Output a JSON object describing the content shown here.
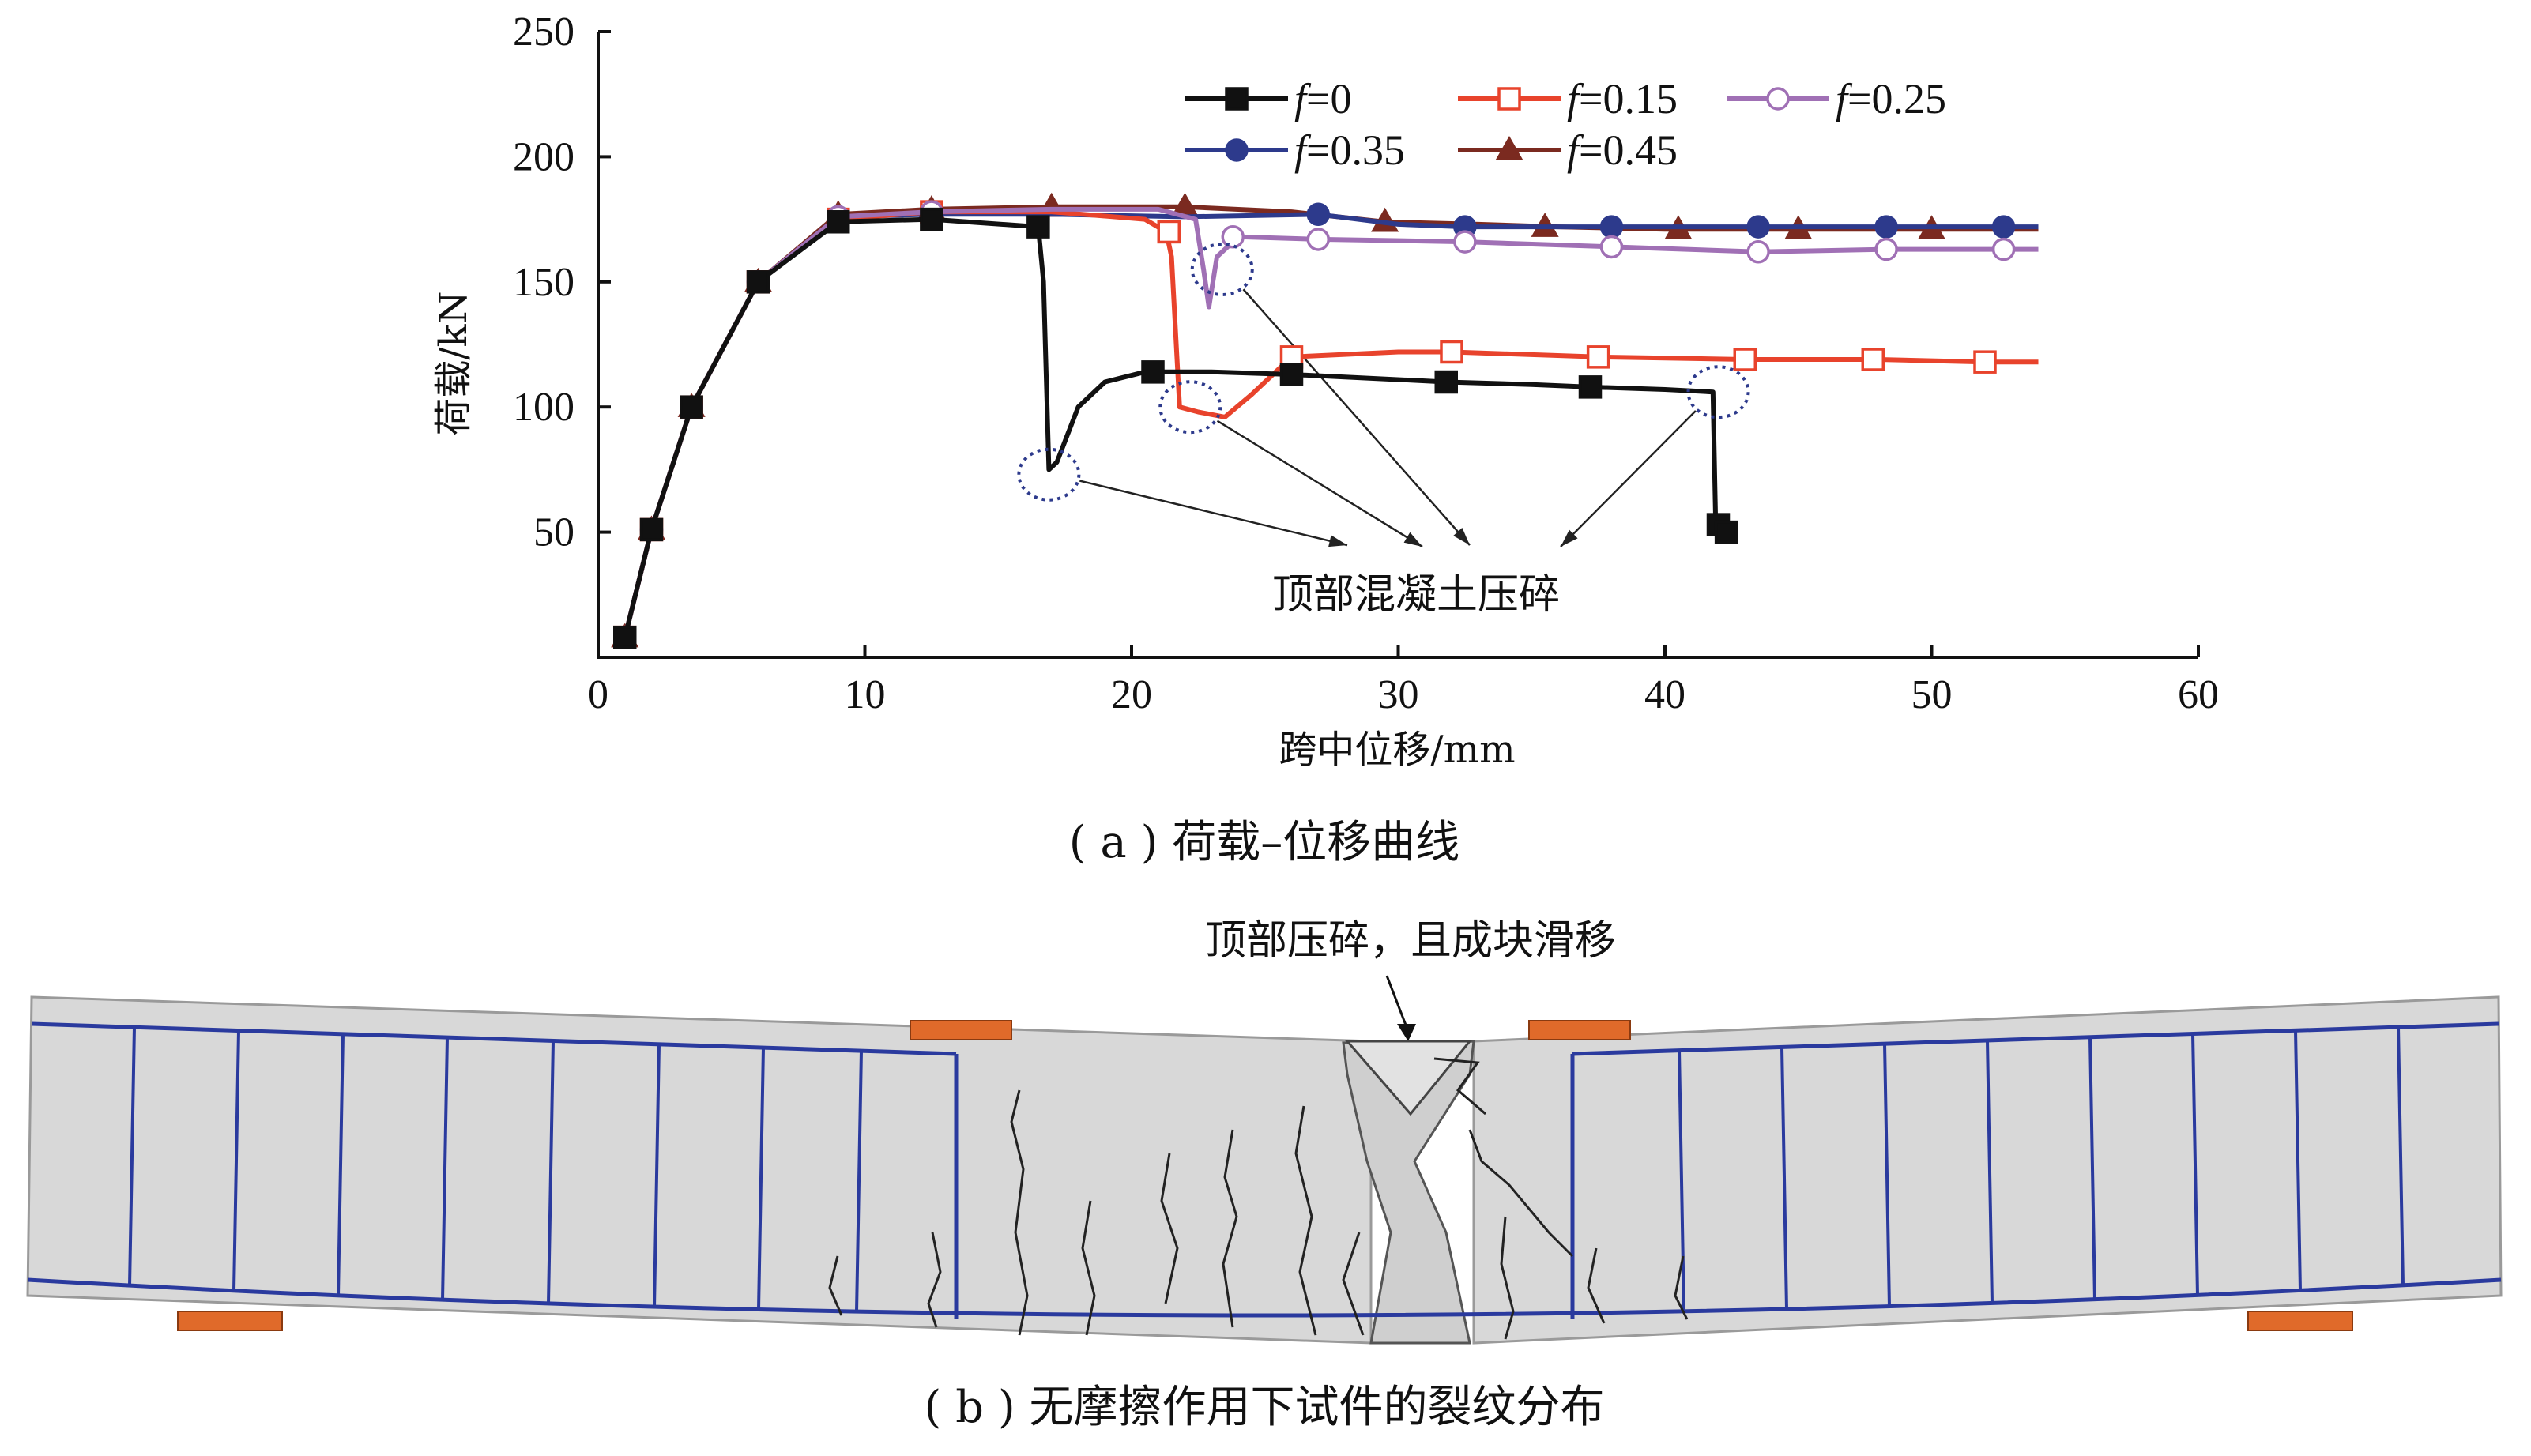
{
  "chart_data": {
    "type": "line",
    "xlabel": "跨中位移/mm",
    "ylabel": "荷载/kN",
    "xlim": [
      0,
      60
    ],
    "ylim": [
      0,
      250
    ],
    "xticks": [
      "0",
      "10",
      "20",
      "30",
      "40",
      "50",
      "60"
    ],
    "yticks": [
      "50",
      "100",
      "150",
      "200",
      "250"
    ],
    "legend": {
      "placement": "top-right",
      "prefix": "f",
      "suffixes": [
        "=0",
        "=0.15",
        "=0.25",
        "=0.35",
        "=0.45"
      ]
    },
    "series": [
      {
        "name": "f=0",
        "color": "#111111",
        "marker": "filled-square",
        "x": [
          1.0,
          2.0,
          3.5,
          6.0,
          9.0,
          12.5,
          16.5,
          16.7,
          16.9,
          17.2,
          18.0,
          19.0,
          20.5,
          21.0,
          23.0,
          26.0,
          28.0,
          31.8,
          35.0,
          37.2,
          40.0,
          41.8,
          41.9,
          42.0,
          42.3
        ],
        "y": [
          8,
          51,
          100,
          150,
          174,
          175,
          172,
          150,
          75,
          78,
          100,
          110,
          114,
          114,
          114,
          113,
          112,
          110,
          109,
          108,
          107,
          106,
          55,
          53,
          50
        ],
        "markers_x": [
          1.0,
          2.0,
          3.5,
          6.0,
          9.0,
          12.5,
          16.5,
          20.8,
          26.0,
          31.8,
          37.2,
          42.0,
          42.3
        ],
        "markers_y": [
          8,
          51,
          100,
          150,
          174,
          175,
          172,
          114,
          113,
          110,
          108,
          53,
          50
        ]
      },
      {
        "name": "f=0.15",
        "color": "#e8432c",
        "marker": "open-square",
        "x": [
          1.0,
          2.0,
          3.5,
          6.0,
          9.0,
          12.5,
          17.0,
          20.5,
          21.3,
          21.5,
          21.6,
          21.8,
          22.5,
          23.5,
          24.5,
          26.0,
          30.0,
          32.0,
          37.5,
          43.0,
          48.0,
          52.0,
          54.0
        ],
        "y": [
          8,
          51,
          100,
          150,
          175,
          178,
          178,
          175,
          170,
          160,
          140,
          100,
          98,
          96,
          105,
          120,
          122,
          122,
          120,
          119,
          119,
          118,
          118
        ],
        "markers_x": [
          1.0,
          2.0,
          3.5,
          6.0,
          9.0,
          12.5,
          21.4,
          26.0,
          32.0,
          37.5,
          43.0,
          47.8,
          52.0
        ],
        "markers_y": [
          8,
          51,
          100,
          150,
          175,
          178,
          170,
          120,
          122,
          120,
          119,
          119,
          118
        ]
      },
      {
        "name": "f=0.25",
        "color": "#a070b5",
        "marker": "open-circle",
        "x": [
          1.0,
          2.0,
          3.5,
          6.0,
          9.0,
          12.5,
          17.0,
          21.0,
          22.4,
          22.7,
          22.9,
          23.2,
          24.0,
          27.0,
          32.5,
          38.0,
          43.5,
          48.3,
          52.7,
          54.0
        ],
        "y": [
          8,
          51,
          100,
          150,
          176,
          178,
          179,
          179,
          175,
          155,
          140,
          160,
          168,
          167,
          166,
          164,
          162,
          163,
          163,
          163
        ],
        "markers_x": [
          1.0,
          2.0,
          3.5,
          6.0,
          9.0,
          12.5,
          23.8,
          27.0,
          32.5,
          38.0,
          43.5,
          48.3,
          52.7
        ],
        "markers_y": [
          8,
          51,
          100,
          150,
          176,
          178,
          168,
          167,
          166,
          164,
          162,
          163,
          163
        ]
      },
      {
        "name": "f=0.35",
        "color": "#2d3a8c",
        "marker": "filled-circle",
        "x": [
          1.0,
          2.0,
          3.5,
          6.0,
          9.0,
          12.5,
          17.0,
          22.0,
          27.0,
          30.0,
          32.5,
          37.7,
          43.5,
          48.3,
          52.7,
          54.0
        ],
        "y": [
          8,
          51,
          100,
          150,
          176,
          177,
          177,
          176,
          177,
          173,
          172,
          172,
          172,
          172,
          172,
          172
        ],
        "markers_x": [
          1.0,
          2.0,
          3.5,
          6.0,
          9.0,
          12.5,
          27.0,
          32.5,
          38.0,
          43.5,
          48.3,
          52.7
        ],
        "markers_y": [
          8,
          51,
          100,
          150,
          176,
          177,
          177,
          172,
          172,
          172,
          172,
          172
        ]
      },
      {
        "name": "f=0.45",
        "color": "#7b2a20",
        "marker": "filled-triangle",
        "x": [
          1.0,
          2.0,
          3.5,
          6.0,
          9.0,
          12.5,
          17.0,
          22.0,
          26.0,
          29.5,
          33.0,
          36.0,
          40.0,
          45.0,
          50.0,
          54.0
        ],
        "y": [
          8,
          51,
          100,
          150,
          177,
          179,
          180,
          180,
          178,
          174,
          173,
          172,
          171,
          171,
          171,
          171
        ],
        "markers_x": [
          1.0,
          2.0,
          3.5,
          6.0,
          9.0,
          12.5,
          17.0,
          22.0,
          29.5,
          35.5,
          40.5,
          45.0,
          50.0
        ],
        "markers_y": [
          8,
          51,
          100,
          150,
          177,
          179,
          180,
          180,
          174,
          172,
          171,
          171,
          171
        ]
      }
    ],
    "annotation": {
      "text": "顶部混凝土压碎",
      "circled_points": [
        {
          "x": 16.9,
          "y": 73
        },
        {
          "x": 22.2,
          "y": 100
        },
        {
          "x": 23.4,
          "y": 155
        },
        {
          "x": 42.0,
          "y": 106
        }
      ]
    }
  },
  "captions": {
    "a": "( a ) 荷载–位移曲线",
    "b": "( b ) 无摩擦作用下试件的裂纹分布"
  },
  "beam": {
    "annotation": "顶部压碎，且成块滑移"
  }
}
